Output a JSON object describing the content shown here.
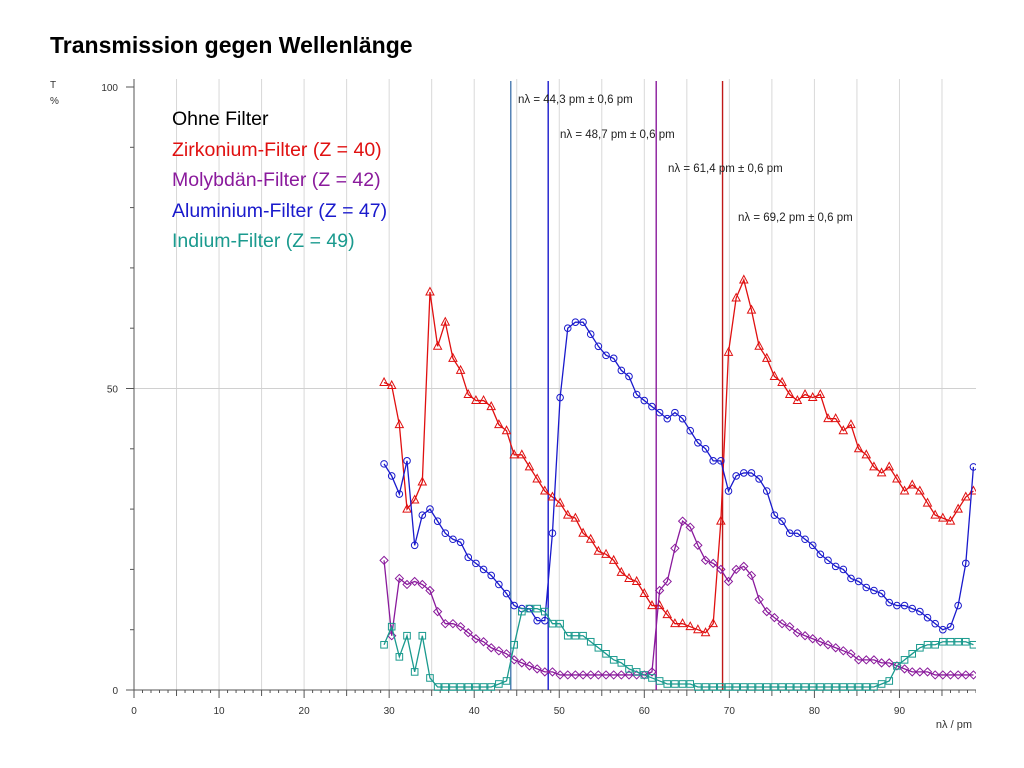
{
  "slide": {
    "title": "Transmission gegen Wellenlänge"
  },
  "chart_data": {
    "type": "line",
    "title": "",
    "xlabel": "nλ / pm",
    "ylabel_top": "T",
    "ylabel_bottom": "%",
    "xlim": [
      0,
      99
    ],
    "ylim": [
      0,
      100
    ],
    "xticks": [
      0,
      10,
      20,
      30,
      40,
      50,
      60,
      70,
      80,
      90
    ],
    "yticks": [
      0,
      50,
      100
    ],
    "grid": true,
    "legend_position": "top-left",
    "legend_entries": [
      {
        "label": "Ohne Filter",
        "color": "#000000"
      },
      {
        "label": "Zirkonium-Filter (Z = 40)",
        "color": "#e01010"
      },
      {
        "label": "Molybdän-Filter (Z = 42)",
        "color": "#8a1a9c"
      },
      {
        "label": "Aluminium-Filter (Z = 47)",
        "color": "#1a1acc"
      },
      {
        "label": "Indium-Filter (Z = 49)",
        "color": "#1a9a8e"
      }
    ],
    "annotations": [
      {
        "text": "nλ =  44,3 pm ± 0,6 pm",
        "x": 44.3,
        "color": "#4a7ab0"
      },
      {
        "text": "nλ =  48,7 pm ± 0,6 pm",
        "x": 48.7,
        "color": "#1a1acc"
      },
      {
        "text": "nλ =  61,4 pm ± 0,6 pm",
        "x": 61.4,
        "color": "#8a1a9c"
      },
      {
        "text": "nλ =  69,2 pm ± 0,6 pm",
        "x": 69.2,
        "color": "#c01818"
      }
    ],
    "series": [
      {
        "name": "Zirkonium-Filter (Z = 40)",
        "color": "#e01010",
        "marker": "triangle",
        "x": [
          29.4,
          30.3,
          31.2,
          32.1,
          33.0,
          33.9,
          34.8,
          35.7,
          36.6,
          37.5,
          38.4,
          39.3,
          40.2,
          41.1,
          42.0,
          42.9,
          43.8,
          44.7,
          45.6,
          46.5,
          47.4,
          48.3,
          49.2,
          50.1,
          51.0,
          51.9,
          52.8,
          53.7,
          54.6,
          55.5,
          56.4,
          57.3,
          58.2,
          59.1,
          60.0,
          60.9,
          61.8,
          62.7,
          63.6,
          64.5,
          65.4,
          66.3,
          67.2,
          68.1,
          69.0,
          69.9,
          70.8,
          71.7,
          72.6,
          73.5,
          74.4,
          75.3,
          76.2,
          77.1,
          78.0,
          78.9,
          79.8,
          80.7,
          81.6,
          82.5,
          83.4,
          84.3,
          85.2,
          86.1,
          87.0,
          87.9,
          88.8,
          89.7,
          90.6,
          91.5,
          92.4,
          93.3,
          94.2,
          95.1,
          96.0,
          96.9,
          97.8,
          98.7
        ],
        "y": [
          51,
          50.5,
          44,
          30,
          31.5,
          34.5,
          66,
          57,
          61,
          55,
          53,
          49,
          48,
          48,
          47,
          44,
          43,
          39,
          39,
          37,
          35,
          33,
          32,
          31,
          29,
          28.5,
          26,
          25,
          23,
          22.5,
          21.5,
          19.5,
          18.5,
          18,
          16,
          14,
          14,
          12.5,
          11,
          11,
          10.5,
          10,
          9.5,
          11,
          28,
          56,
          65,
          68,
          63,
          57,
          55,
          52,
          51,
          49,
          48,
          49,
          48.5,
          49,
          45,
          45,
          43,
          44,
          40,
          39,
          37,
          36,
          37,
          35,
          33,
          34,
          33,
          31,
          29,
          28.5,
          28,
          30,
          32,
          33
        ]
      },
      {
        "name": "Aluminium-Filter (Z = 47)",
        "color": "#1a1acc",
        "marker": "circle",
        "x": [
          29.4,
          30.3,
          31.2,
          32.1,
          33.0,
          33.9,
          34.8,
          35.7,
          36.6,
          37.5,
          38.4,
          39.3,
          40.2,
          41.1,
          42.0,
          42.9,
          43.8,
          44.7,
          45.6,
          46.5,
          47.4,
          48.3,
          49.2,
          50.1,
          51.0,
          51.9,
          52.8,
          53.7,
          54.6,
          55.5,
          56.4,
          57.3,
          58.2,
          59.1,
          60.0,
          60.9,
          61.8,
          62.7,
          63.6,
          64.5,
          65.4,
          66.3,
          67.2,
          68.1,
          69.0,
          69.9,
          70.8,
          71.7,
          72.6,
          73.5,
          74.4,
          75.3,
          76.2,
          77.1,
          78.0,
          78.9,
          79.8,
          80.7,
          81.6,
          82.5,
          83.4,
          84.3,
          85.2,
          86.1,
          87.0,
          87.9,
          88.8,
          89.7,
          90.6,
          91.5,
          92.4,
          93.3,
          94.2,
          95.1,
          96.0,
          96.9,
          97.8,
          98.7
        ],
        "y": [
          37.5,
          35.5,
          32.5,
          38,
          24,
          29,
          30,
          28,
          26,
          25,
          24.5,
          22,
          21,
          20,
          19,
          17.5,
          16,
          14,
          13.5,
          13.5,
          11.5,
          11.5,
          26,
          48.5,
          60,
          61,
          61,
          59,
          57,
          55.5,
          55,
          53,
          52,
          49,
          48,
          47,
          46,
          45,
          46,
          45,
          43,
          41,
          40,
          38,
          38,
          33,
          35.5,
          36,
          36,
          35,
          33,
          29,
          28,
          26,
          26,
          25,
          24,
          22.5,
          21.5,
          20.5,
          20,
          18.5,
          18,
          17,
          16.5,
          16,
          14.5,
          14,
          14,
          13.5,
          13,
          12,
          11,
          10,
          10.5,
          14,
          21,
          37
        ]
      },
      {
        "name": "Molybdän-Filter (Z = 42)",
        "color": "#8a1a9c",
        "marker": "diamond",
        "x": [
          29.4,
          30.3,
          31.2,
          32.1,
          33.0,
          33.9,
          34.8,
          35.7,
          36.6,
          37.5,
          38.4,
          39.3,
          40.2,
          41.1,
          42.0,
          42.9,
          43.8,
          44.7,
          45.6,
          46.5,
          47.4,
          48.3,
          49.2,
          50.1,
          51.0,
          51.9,
          52.8,
          53.7,
          54.6,
          55.5,
          56.4,
          57.3,
          58.2,
          59.1,
          60.0,
          60.9,
          61.8,
          62.7,
          63.6,
          64.5,
          65.4,
          66.3,
          67.2,
          68.1,
          69.0,
          69.9,
          70.8,
          71.7,
          72.6,
          73.5,
          74.4,
          75.3,
          76.2,
          77.1,
          78.0,
          78.9,
          79.8,
          80.7,
          81.6,
          82.5,
          83.4,
          84.3,
          85.2,
          86.1,
          87.0,
          87.9,
          88.8,
          89.7,
          90.6,
          91.5,
          92.4,
          93.3,
          94.2,
          95.1,
          96.0,
          96.9,
          97.8,
          98.7
        ],
        "y": [
          21.5,
          9,
          18.5,
          17.5,
          18,
          17.5,
          16.5,
          13,
          11,
          11,
          10.5,
          9.5,
          8.5,
          8,
          7,
          6.5,
          6,
          5,
          4.5,
          4,
          3.5,
          3,
          3,
          2.5,
          2.5,
          2.5,
          2.5,
          2.5,
          2.5,
          2.5,
          2.5,
          2.5,
          2.5,
          2.5,
          2.5,
          3,
          16.5,
          18,
          23.5,
          28,
          27,
          24,
          21.5,
          21,
          20,
          18,
          20,
          20.5,
          19,
          15,
          13,
          12,
          11,
          10.5,
          9.5,
          9,
          8.5,
          8,
          7.5,
          7,
          6.5,
          6,
          5,
          5,
          5,
          4.5,
          4.5,
          4,
          3.5,
          3,
          3,
          3,
          2.5,
          2.5,
          2.5,
          2.5,
          2.5,
          2.5
        ]
      },
      {
        "name": "Indium-Filter (Z = 49)",
        "color": "#1a9a8e",
        "marker": "square",
        "x": [
          29.4,
          30.3,
          31.2,
          32.1,
          33.0,
          33.9,
          34.8,
          35.7,
          36.6,
          37.5,
          38.4,
          39.3,
          40.2,
          41.1,
          42.0,
          42.9,
          43.8,
          44.7,
          45.6,
          46.5,
          47.4,
          48.3,
          49.2,
          50.1,
          51.0,
          51.9,
          52.8,
          53.7,
          54.6,
          55.5,
          56.4,
          57.3,
          58.2,
          59.1,
          60.0,
          60.9,
          61.8,
          62.7,
          63.6,
          64.5,
          65.4,
          66.3,
          67.2,
          68.1,
          69.0,
          69.9,
          70.8,
          71.7,
          72.6,
          73.5,
          74.4,
          75.3,
          76.2,
          77.1,
          78.0,
          78.9,
          79.8,
          80.7,
          81.6,
          82.5,
          83.4,
          84.3,
          85.2,
          86.1,
          87.0,
          87.9,
          88.8,
          89.7,
          90.6,
          91.5,
          92.4,
          93.3,
          94.2,
          95.1,
          96.0,
          96.9,
          97.8,
          98.7
        ],
        "y": [
          7.5,
          10.5,
          5.5,
          9,
          3,
          9,
          2,
          0.5,
          0.5,
          0.5,
          0.5,
          0.5,
          0.5,
          0.5,
          0.5,
          1,
          1.5,
          7.5,
          13,
          13.5,
          13.5,
          13,
          11,
          11,
          9,
          9,
          9,
          8,
          7,
          6,
          5,
          4.5,
          3.5,
          3,
          2.5,
          2,
          1.5,
          1,
          1,
          1,
          1,
          0.5,
          0.5,
          0.5,
          0.5,
          0.5,
          0.5,
          0.5,
          0.5,
          0.5,
          0.5,
          0.5,
          0.5,
          0.5,
          0.5,
          0.5,
          0.5,
          0.5,
          0.5,
          0.5,
          0.5,
          0.5,
          0.5,
          0.5,
          0.5,
          1,
          1.5,
          4,
          5,
          6,
          7,
          7.5,
          7.5,
          8,
          8,
          8,
          8,
          7.5
        ]
      }
    ]
  }
}
